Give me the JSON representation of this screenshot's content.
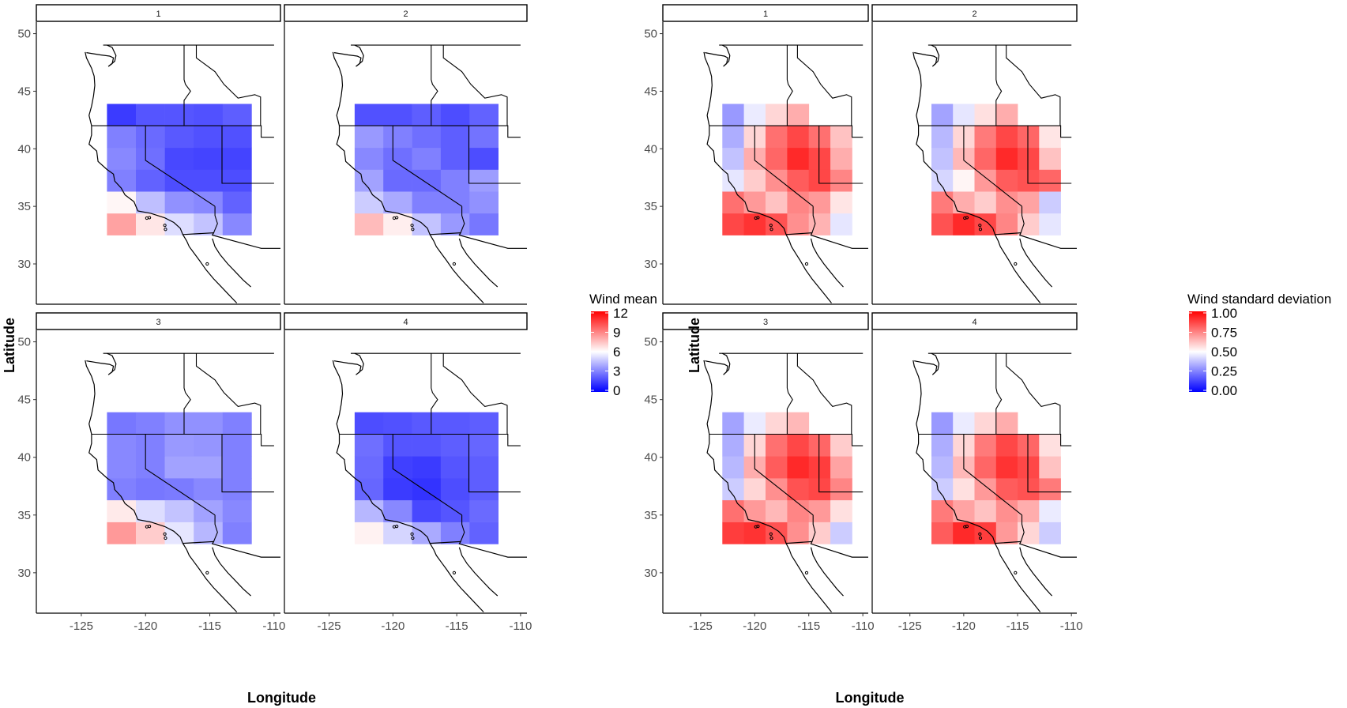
{
  "chart_data": [
    {
      "type": "heatmap",
      "facets": [
        "1",
        "2",
        "3",
        "4"
      ],
      "xlabel": "Longitude",
      "ylabel": "Latitude",
      "x_ticks": [
        "-125",
        "-120",
        "-115",
        "-110"
      ],
      "y_ticks": [
        "30",
        "35",
        "40",
        "45",
        "50"
      ],
      "xlim": [
        -128.5,
        -109.5
      ],
      "ylim": [
        26.5,
        51.0
      ],
      "grid": false,
      "legend": {
        "title": "Wind mean",
        "placement": "right",
        "breaks": [
          "12",
          "9",
          "6",
          "3",
          "0"
        ],
        "min": 0,
        "max": 12,
        "colors": [
          "#0000ff",
          "#ffffff",
          "#ff0000"
        ]
      },
      "cell_grid": {
        "lon_min": -123,
        "lat_min": 32.5,
        "cell_width": 2.25,
        "cell_height": 1.9,
        "cols": 5,
        "rows": 6,
        "row_order": "south_to_north"
      },
      "panels": [
        {
          "facet": "1",
          "values": [
            [
              8.2,
              6.6,
              5.2,
              4.6,
              3.2
            ],
            [
              6.2,
              4.5,
              3.4,
              3.2,
              2.3
            ],
            [
              3.0,
              2.3,
              1.8,
              1.8,
              1.8
            ],
            [
              3.2,
              2.6,
              1.7,
              1.6,
              1.6
            ],
            [
              3.0,
              2.5,
              2.1,
              1.9,
              1.9
            ],
            [
              1.4,
              2.0,
              2.0,
              1.9,
              2.2
            ]
          ]
        },
        {
          "facet": "2",
          "values": [
            [
              7.6,
              6.4,
              4.6,
              3.6,
              2.8
            ],
            [
              4.8,
              4.0,
              3.0,
              3.0,
              3.4
            ],
            [
              3.8,
              2.5,
              2.5,
              3.0,
              3.7
            ],
            [
              3.2,
              2.6,
              3.0,
              2.2,
              1.8
            ],
            [
              3.6,
              3.0,
              2.6,
              2.2,
              2.7
            ],
            [
              1.9,
              1.9,
              2.2,
              1.8,
              2.3
            ]
          ]
        },
        {
          "facet": "3",
          "values": [
            [
              8.4,
              7.2,
              5.4,
              4.3,
              3.0
            ],
            [
              6.5,
              5.2,
              4.6,
              3.8,
              3.2
            ],
            [
              3.0,
              2.8,
              2.9,
              3.2,
              3.0
            ],
            [
              3.2,
              3.0,
              3.8,
              3.8,
              3.0
            ],
            [
              3.2,
              3.0,
              3.6,
              3.5,
              3.0
            ],
            [
              2.8,
              3.0,
              3.4,
              3.4,
              3.0
            ]
          ]
        },
        {
          "facet": "4",
          "values": [
            [
              6.3,
              5.0,
              4.0,
              3.0,
              2.3
            ],
            [
              4.3,
              3.2,
              1.7,
              2.0,
              2.5
            ],
            [
              2.4,
              1.4,
              1.2,
              1.8,
              2.2
            ],
            [
              2.5,
              1.5,
              1.4,
              2.0,
              2.2
            ],
            [
              2.6,
              2.0,
              2.0,
              2.2,
              2.4
            ],
            [
              1.8,
              1.9,
              2.1,
              2.1,
              2.2
            ]
          ]
        }
      ]
    },
    {
      "type": "heatmap",
      "facets": [
        "1",
        "2",
        "3",
        "4"
      ],
      "xlabel": "Longitude",
      "ylabel": "Latitude",
      "x_ticks": [
        "-125",
        "-120",
        "-115",
        "-110"
      ],
      "y_ticks": [
        "30",
        "35",
        "40",
        "45",
        "50"
      ],
      "xlim": [
        -128.5,
        -109.5
      ],
      "ylim": [
        26.5,
        51.0
      ],
      "grid": false,
      "legend": {
        "title": "Wind standard deviation",
        "placement": "right",
        "breaks": [
          "1.00",
          "0.75",
          "0.50",
          "0.25",
          "0.00"
        ],
        "min": 0,
        "max": 1,
        "colors": [
          "#0000ff",
          "#ffffff",
          "#ff0000"
        ]
      },
      "cell_grid": {
        "lon_min": -123,
        "lat_min": 32.5,
        "cell_width": 2.0,
        "cell_height": 1.9,
        "cols": 6,
        "rows": 6,
        "row_order": "south_to_north"
      },
      "panels": [
        {
          "facet": "1",
          "values": [
            [
              0.86,
              0.9,
              0.84,
              0.72,
              0.65,
              0.45
            ],
            [
              0.78,
              0.7,
              0.62,
              0.74,
              0.7,
              0.55
            ],
            [
              0.45,
              0.6,
              0.72,
              0.82,
              0.86,
              0.74
            ],
            [
              0.38,
              0.66,
              0.8,
              0.92,
              0.86,
              0.66
            ],
            [
              0.34,
              0.58,
              0.78,
              0.86,
              0.78,
              0.62
            ],
            [
              0.3,
              0.46,
              0.58,
              0.66,
              null,
              null
            ]
          ]
        },
        {
          "facet": "2",
          "values": [
            [
              0.84,
              0.92,
              0.86,
              0.74,
              0.6,
              0.45
            ],
            [
              0.76,
              0.66,
              0.6,
              0.72,
              0.68,
              0.4
            ],
            [
              0.42,
              0.52,
              0.7,
              0.82,
              0.84,
              0.8
            ],
            [
              0.38,
              0.64,
              0.8,
              0.92,
              0.86,
              0.62
            ],
            [
              0.36,
              0.58,
              0.76,
              0.86,
              0.8,
              0.55
            ],
            [
              0.32,
              0.45,
              0.56,
              0.66,
              null,
              null
            ]
          ]
        },
        {
          "facet": "3",
          "values": [
            [
              0.88,
              0.9,
              0.84,
              0.72,
              0.6,
              0.4
            ],
            [
              0.78,
              0.7,
              0.64,
              0.74,
              0.7,
              0.56
            ],
            [
              0.4,
              0.58,
              0.72,
              0.84,
              0.86,
              0.74
            ],
            [
              0.36,
              0.66,
              0.82,
              0.92,
              0.88,
              0.68
            ],
            [
              0.34,
              0.58,
              0.78,
              0.86,
              0.8,
              0.6
            ],
            [
              0.32,
              0.46,
              0.58,
              0.64,
              null,
              null
            ]
          ]
        },
        {
          "facet": "4",
          "values": [
            [
              0.82,
              0.92,
              0.88,
              0.7,
              0.58,
              0.4
            ],
            [
              0.76,
              0.68,
              0.62,
              0.72,
              0.66,
              0.46
            ],
            [
              0.4,
              0.56,
              0.7,
              0.82,
              0.84,
              0.76
            ],
            [
              0.36,
              0.64,
              0.8,
              0.9,
              0.86,
              0.62
            ],
            [
              0.34,
              0.58,
              0.76,
              0.86,
              0.8,
              0.56
            ],
            [
              0.3,
              0.46,
              0.58,
              0.66,
              null,
              null
            ]
          ]
        }
      ]
    }
  ]
}
